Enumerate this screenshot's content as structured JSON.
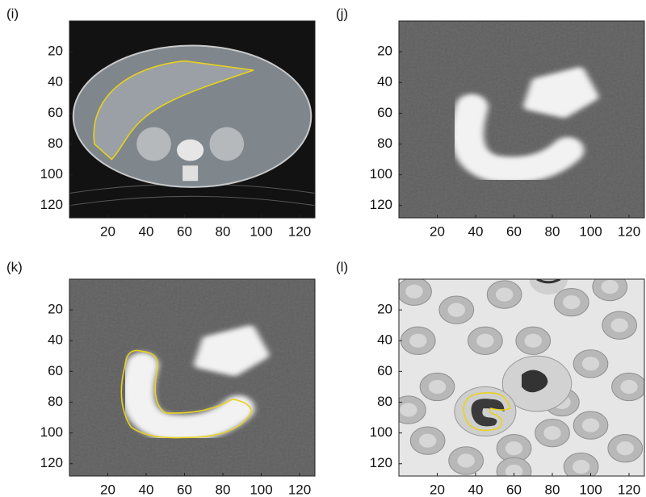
{
  "chart_data": [
    {
      "type": "image",
      "label": "(i)",
      "xlim": [
        0,
        128
      ],
      "ylim": [
        0,
        128
      ],
      "y_reversed": true,
      "xticks": [
        20,
        40,
        60,
        80,
        100,
        120
      ],
      "yticks": [
        20,
        40,
        60,
        80,
        100,
        120
      ]
    },
    {
      "type": "image",
      "label": "(j)",
      "xlim": [
        0,
        128
      ],
      "ylim": [
        0,
        128
      ],
      "y_reversed": true,
      "xticks": [
        20,
        40,
        60,
        80,
        100,
        120
      ],
      "yticks": [
        20,
        40,
        60,
        80,
        100,
        120
      ]
    },
    {
      "type": "image",
      "label": "(k)",
      "xlim": [
        0,
        128
      ],
      "ylim": [
        0,
        128
      ],
      "y_reversed": true,
      "xticks": [
        20,
        40,
        60,
        80,
        100,
        120
      ],
      "yticks": [
        20,
        40,
        60,
        80,
        100,
        120
      ]
    },
    {
      "type": "image",
      "label": "(l)",
      "xlim": [
        0,
        128
      ],
      "ylim": [
        0,
        128
      ],
      "y_reversed": true,
      "xticks": [
        20,
        40,
        60,
        80,
        100,
        120
      ],
      "yticks": [
        20,
        40,
        60,
        80,
        100,
        120
      ]
    }
  ]
}
